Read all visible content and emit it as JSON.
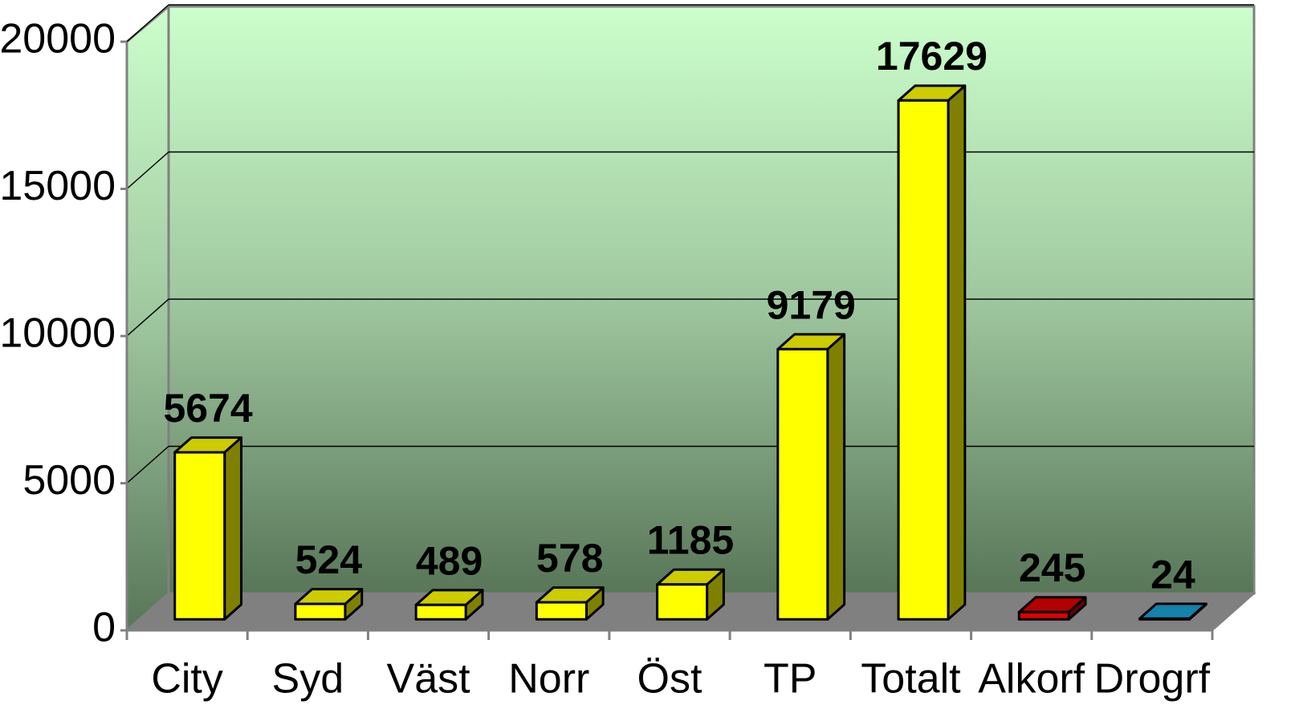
{
  "chart_data": {
    "type": "bar3d",
    "categories": [
      "City",
      "Syd",
      "Väst",
      "Norr",
      "Öst",
      "TP",
      "Totalt",
      "Alkorf",
      "Drogrf"
    ],
    "values": [
      5674,
      524,
      489,
      578,
      1185,
      9179,
      17629,
      245,
      24
    ],
    "colors": [
      "#ffff00",
      "#ffff00",
      "#ffff00",
      "#ffff00",
      "#ffff00",
      "#ffff00",
      "#ffff00",
      "#e00000",
      "#1aa3d6"
    ],
    "ylim": [
      0,
      20000
    ],
    "yticks": [
      0,
      5000,
      10000,
      15000,
      20000
    ],
    "grid": true
  }
}
